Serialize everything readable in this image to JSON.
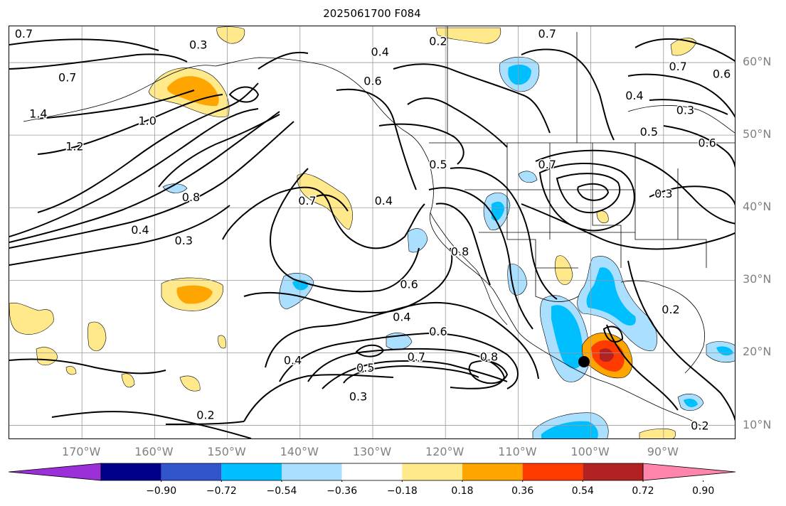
{
  "title": "2025061700 F084",
  "lat_labels": [
    {
      "text": "60°N",
      "lat": 60
    },
    {
      "text": "50°N",
      "lat": 50
    },
    {
      "text": "40°N",
      "lat": 40
    },
    {
      "text": "30°N",
      "lat": 30
    },
    {
      "text": "20°N",
      "lat": 20
    },
    {
      "text": "10°N",
      "lat": 10
    }
  ],
  "lon_labels": [
    {
      "text": "170°W",
      "lon": -170
    },
    {
      "text": "160°W",
      "lon": -160
    },
    {
      "text": "150°W",
      "lon": -150
    },
    {
      "text": "140°W",
      "lon": -140
    },
    {
      "text": "130°W",
      "lon": -130
    },
    {
      "text": "120°W",
      "lon": -120
    },
    {
      "text": "110°W",
      "lon": -110
    },
    {
      "text": "100°W",
      "lon": -100
    },
    {
      "text": "90°W",
      "lon": -90
    }
  ],
  "map_extent": {
    "lon_min": -180,
    "lon_max": -80,
    "lat_min": 8,
    "lat_max": 65
  },
  "colorbar": {
    "ticks": [
      "−0.90",
      "−0.72",
      "−0.54",
      "−0.36",
      "−0.18",
      "0.18",
      "0.36",
      "0.54",
      "0.72",
      "0.90"
    ],
    "low_extend_color": "#9b30d9",
    "bins": [
      "#00008b",
      "#3355cc",
      "#00bfff",
      "#aadfff",
      "#ffffff",
      "#ffe98a",
      "#ffa500",
      "#ff3b00",
      "#b22222",
      "#ff85aa"
    ]
  },
  "contour_labels": [
    {
      "text": "0.7",
      "lon": -178,
      "lat": 64
    },
    {
      "text": "0.3",
      "lon": -154,
      "lat": 62.5
    },
    {
      "text": "0.7",
      "lon": -172,
      "lat": 58
    },
    {
      "text": "1.4",
      "lon": -176,
      "lat": 53
    },
    {
      "text": "1.0",
      "lon": -161,
      "lat": 52
    },
    {
      "text": "1.2",
      "lon": -171,
      "lat": 48.5
    },
    {
      "text": "0.8",
      "lon": -155,
      "lat": 41.5
    },
    {
      "text": "0.4",
      "lon": -162,
      "lat": 37
    },
    {
      "text": "0.3",
      "lon": -156,
      "lat": 35.5
    },
    {
      "text": "0.7",
      "lon": -139,
      "lat": 41
    },
    {
      "text": "0.4",
      "lon": -128.5,
      "lat": 41
    },
    {
      "text": "0.2",
      "lon": -121,
      "lat": 63
    },
    {
      "text": "0.4",
      "lon": -129,
      "lat": 61.5
    },
    {
      "text": "0.6",
      "lon": -130,
      "lat": 57.5
    },
    {
      "text": "0.5",
      "lon": -121,
      "lat": 46
    },
    {
      "text": "0.8",
      "lon": -118,
      "lat": 34
    },
    {
      "text": "0.6",
      "lon": -125,
      "lat": 29.5
    },
    {
      "text": "0.4",
      "lon": -126,
      "lat": 25
    },
    {
      "text": "0.6",
      "lon": -121,
      "lat": 23
    },
    {
      "text": "0.7",
      "lon": -124,
      "lat": 19.5
    },
    {
      "text": "0.8",
      "lon": -114,
      "lat": 19.5
    },
    {
      "text": "0.5",
      "lon": -131,
      "lat": 18
    },
    {
      "text": "0.4",
      "lon": -141,
      "lat": 19
    },
    {
      "text": "0.3",
      "lon": -132,
      "lat": 14
    },
    {
      "text": "0.2",
      "lon": -153,
      "lat": 11.5
    },
    {
      "text": "0.7",
      "lon": -106,
      "lat": 64
    },
    {
      "text": "0.7",
      "lon": -88,
      "lat": 59.5
    },
    {
      "text": "0.6",
      "lon": -82,
      "lat": 58.5
    },
    {
      "text": "0.4",
      "lon": -94,
      "lat": 55.5
    },
    {
      "text": "0.3",
      "lon": -87,
      "lat": 53.5
    },
    {
      "text": "0.5",
      "lon": -92,
      "lat": 50.5
    },
    {
      "text": "0.6",
      "lon": -84,
      "lat": 49
    },
    {
      "text": "0.7",
      "lon": -106,
      "lat": 46
    },
    {
      "text": "0.3",
      "lon": -90,
      "lat": 42
    },
    {
      "text": "0.2",
      "lon": -89,
      "lat": 26
    },
    {
      "text": "0.2",
      "lon": -85,
      "lat": 10
    }
  ]
}
